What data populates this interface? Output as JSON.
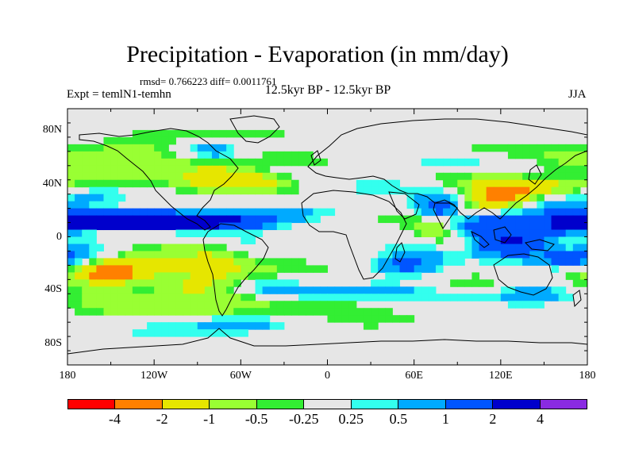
{
  "title": "Precipitation - Evaporation (in mm/day)",
  "stats_text": "rmsd= 0.766223  diff= 0.0011761",
  "experiment": "Expt = temlN1-temhn",
  "period": "12.5kyr BP - 12.5kyr BP",
  "season": "JJA",
  "lat_labels": [
    {
      "text": "80N",
      "lat": 75
    },
    {
      "text": "40N",
      "lat": 37
    },
    {
      "text": "0",
      "lat": 0
    },
    {
      "text": "40S",
      "lat": -37
    },
    {
      "text": "80S",
      "lat": -75
    }
  ],
  "lon_labels": [
    {
      "text": "180",
      "lon": -180
    },
    {
      "text": "120W",
      "lon": -120
    },
    {
      "text": "60W",
      "lon": -60
    },
    {
      "text": "0",
      "lon": 0
    },
    {
      "text": "60E",
      "lon": 60
    },
    {
      "text": "120E",
      "lon": 120
    },
    {
      "text": "180",
      "lon": 180
    }
  ],
  "colorbar": {
    "colors": [
      "#ff0000",
      "#ff8000",
      "#e6e600",
      "#99ff33",
      "#33ee33",
      "#e6e6e6",
      "#33ffee",
      "#00aaff",
      "#0055ff",
      "#0000cc",
      "#8a2be2"
    ],
    "labels": [
      "-4",
      "-2",
      "-1",
      "-0.5",
      "-0.25",
      "0.25",
      "0.5",
      "1",
      "2",
      "4"
    ]
  },
  "colors": {
    "ocean_default": "#e6e6e6",
    "coast": "#000000"
  },
  "chart_data": {
    "type": "heatmap",
    "title": "Precipitation - Evaporation (in mm/day)",
    "subtitle": "12.5kyr BP - 12.5kyr BP",
    "season": "JJA",
    "levels": [
      -4,
      -2,
      -1,
      -0.5,
      -0.25,
      0.25,
      0.5,
      1,
      2,
      4
    ],
    "xlabel": "",
    "ylabel": "",
    "xlim": [
      -180,
      180
    ],
    "ylim": [
      -90,
      90
    ],
    "blobs": [
      {
        "lon": -150,
        "lat": 12,
        "w": 30,
        "h": 5,
        "v": 1.5
      },
      {
        "lon": -110,
        "lat": 12,
        "w": 40,
        "h": 4,
        "v": 2.5
      },
      {
        "lon": -75,
        "lat": 10,
        "w": 25,
        "h": 4,
        "v": 1.2
      },
      {
        "lon": -160,
        "lat": 4,
        "w": 20,
        "h": 3,
        "v": -0.6
      },
      {
        "lon": -120,
        "lat": 18,
        "w": 25,
        "h": 4,
        "v": -0.4
      },
      {
        "lon": -165,
        "lat": -10,
        "w": 25,
        "h": 6,
        "v": 0.8
      },
      {
        "lon": -150,
        "lat": -30,
        "w": 25,
        "h": 12,
        "v": -1.8
      },
      {
        "lon": -150,
        "lat": -25,
        "w": 10,
        "h": 4,
        "v": -2.5
      },
      {
        "lon": -130,
        "lat": -35,
        "w": 30,
        "h": 6,
        "v": 1.2
      },
      {
        "lon": -105,
        "lat": -15,
        "w": 30,
        "h": 8,
        "v": -0.8
      },
      {
        "lon": -100,
        "lat": -35,
        "w": 20,
        "h": 6,
        "v": -1.2
      },
      {
        "lon": -110,
        "lat": -50,
        "w": 40,
        "h": 6,
        "v": -0.4
      },
      {
        "lon": -70,
        "lat": -45,
        "w": 30,
        "h": 10,
        "v": -0.6
      },
      {
        "lon": -75,
        "lat": -20,
        "w": 15,
        "h": 8,
        "v": -0.8
      },
      {
        "lon": -60,
        "lat": -5,
        "w": 15,
        "h": 8,
        "v": 0.4
      },
      {
        "lon": -35,
        "lat": -25,
        "w": 30,
        "h": 8,
        "v": -0.5
      },
      {
        "lon": -40,
        "lat": -35,
        "w": 20,
        "h": 5,
        "v": 1.0
      },
      {
        "lon": 0,
        "lat": -40,
        "w": 25,
        "h": 4,
        "v": 0.6
      },
      {
        "lon": 20,
        "lat": -48,
        "w": 40,
        "h": 5,
        "v": -0.5
      },
      {
        "lon": 60,
        "lat": -40,
        "w": 35,
        "h": 6,
        "v": 0.8
      },
      {
        "lon": 30,
        "lat": -60,
        "w": 50,
        "h": 4,
        "v": -0.3
      },
      {
        "lon": 100,
        "lat": -35,
        "w": 30,
        "h": 6,
        "v": -0.7
      },
      {
        "lon": 140,
        "lat": -40,
        "w": 25,
        "h": 5,
        "v": 1.0
      },
      {
        "lon": -110,
        "lat": -65,
        "w": 40,
        "h": 4,
        "v": 0.4
      },
      {
        "lon": -60,
        "lat": -60,
        "w": 25,
        "h": 4,
        "v": 1.0
      },
      {
        "lon": -80,
        "lat": 72,
        "w": 50,
        "h": 5,
        "v": -0.4
      },
      {
        "lon": -140,
        "lat": 60,
        "w": 20,
        "h": 5,
        "v": -0.6
      },
      {
        "lon": -150,
        "lat": 45,
        "w": 30,
        "h": 6,
        "v": -0.5
      },
      {
        "lon": -160,
        "lat": 30,
        "w": 20,
        "h": 4,
        "v": 0.6
      },
      {
        "lon": -95,
        "lat": 50,
        "w": 30,
        "h": 8,
        "v": -0.6
      },
      {
        "lon": -60,
        "lat": 40,
        "w": 25,
        "h": 6,
        "v": -2.2
      },
      {
        "lon": -40,
        "lat": 45,
        "w": 25,
        "h": 6,
        "v": 0.8
      },
      {
        "lon": -20,
        "lat": 55,
        "w": 25,
        "h": 5,
        "v": -0.5
      },
      {
        "lon": 10,
        "lat": 60,
        "w": 20,
        "h": 5,
        "v": 0.6
      },
      {
        "lon": 40,
        "lat": 58,
        "w": 35,
        "h": 6,
        "v": -0.6
      },
      {
        "lon": 80,
        "lat": 55,
        "w": 30,
        "h": 5,
        "v": 0.8
      },
      {
        "lon": 120,
        "lat": 60,
        "w": 30,
        "h": 5,
        "v": -0.5
      },
      {
        "lon": -80,
        "lat": 60,
        "w": 15,
        "h": 5,
        "v": 1.0
      },
      {
        "lon": -20,
        "lat": 15,
        "w": 20,
        "h": 4,
        "v": 0.6
      },
      {
        "lon": 10,
        "lat": 10,
        "w": 30,
        "h": 3,
        "v": -0.4
      },
      {
        "lon": 40,
        "lat": 8,
        "w": 15,
        "h": 5,
        "v": 0.5
      },
      {
        "lon": 55,
        "lat": 10,
        "w": 20,
        "h": 6,
        "v": -0.7
      },
      {
        "lon": 80,
        "lat": 20,
        "w": 15,
        "h": 8,
        "v": 1.5
      },
      {
        "lon": 75,
        "lat": 8,
        "w": 10,
        "h": 5,
        "v": -1.2
      },
      {
        "lon": 95,
        "lat": 15,
        "w": 12,
        "h": 6,
        "v": -1.8
      },
      {
        "lon": 105,
        "lat": 10,
        "w": 20,
        "h": 8,
        "v": 2.2
      },
      {
        "lon": 115,
        "lat": 25,
        "w": 15,
        "h": 6,
        "v": -2.0
      },
      {
        "lon": 130,
        "lat": 32,
        "w": 20,
        "h": 5,
        "v": -2.5
      },
      {
        "lon": 145,
        "lat": 28,
        "w": 25,
        "h": 8,
        "v": 1.2
      },
      {
        "lon": 160,
        "lat": 35,
        "w": 25,
        "h": 5,
        "v": -1.0
      },
      {
        "lon": 135,
        "lat": 15,
        "w": 20,
        "h": 8,
        "v": -0.6
      },
      {
        "lon": 165,
        "lat": 10,
        "w": 30,
        "h": 6,
        "v": 2.0
      },
      {
        "lon": 100,
        "lat": -3,
        "w": 20,
        "h": 6,
        "v": -1.5
      },
      {
        "lon": 125,
        "lat": -5,
        "w": 20,
        "h": 6,
        "v": 3.0
      },
      {
        "lon": 150,
        "lat": -8,
        "w": 25,
        "h": 5,
        "v": -0.8
      },
      {
        "lon": 170,
        "lat": -15,
        "w": 20,
        "h": 5,
        "v": 1.5
      },
      {
        "lon": 75,
        "lat": -10,
        "w": 25,
        "h": 6,
        "v": 0.6
      },
      {
        "lon": 55,
        "lat": -20,
        "w": 15,
        "h": 5,
        "v": 1.2
      },
      {
        "lon": 100,
        "lat": 40,
        "w": 30,
        "h": 5,
        "v": -0.5
      },
      {
        "lon": 40,
        "lat": 35,
        "w": 20,
        "h": 4,
        "v": 0.5
      },
      {
        "lon": 170,
        "lat": 55,
        "w": 20,
        "h": 6,
        "v": -0.5
      }
    ]
  }
}
